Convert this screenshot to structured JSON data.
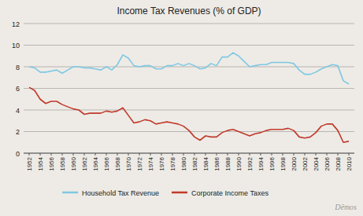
{
  "chart_data": {
    "type": "line",
    "title": "Income Tax Revenues (% of GDP)",
    "x": [
      1952,
      1953,
      1954,
      1955,
      1956,
      1957,
      1958,
      1959,
      1960,
      1961,
      1962,
      1963,
      1964,
      1965,
      1966,
      1967,
      1968,
      1969,
      1970,
      1971,
      1972,
      1973,
      1974,
      1975,
      1976,
      1977,
      1978,
      1979,
      1980,
      1981,
      1982,
      1983,
      1984,
      1985,
      1986,
      1987,
      1988,
      1989,
      1990,
      1991,
      1992,
      1993,
      1994,
      1995,
      1996,
      1997,
      1998,
      1999,
      2000,
      2001,
      2002,
      2003,
      2004,
      2005,
      2006,
      2007,
      2008,
      2009,
      2010
    ],
    "series": [
      {
        "name": "Household Tax Revenue",
        "color": "#7ec8e3",
        "values": [
          8.0,
          7.9,
          7.5,
          7.5,
          7.6,
          7.7,
          7.4,
          7.7,
          8.0,
          8.0,
          7.9,
          7.9,
          7.8,
          7.7,
          8.0,
          7.7,
          8.2,
          9.1,
          8.8,
          8.1,
          8.0,
          8.1,
          8.1,
          7.8,
          7.8,
          8.1,
          8.1,
          8.3,
          8.1,
          8.3,
          8.1,
          7.8,
          7.9,
          8.3,
          8.1,
          8.9,
          8.9,
          9.3,
          9.0,
          8.5,
          8.0,
          8.1,
          8.2,
          8.2,
          8.4,
          8.4,
          8.4,
          8.4,
          8.3,
          7.7,
          7.3,
          7.3,
          7.5,
          7.8,
          8.0,
          8.2,
          8.1,
          6.7,
          6.4
        ]
      },
      {
        "name": "Corporate Income Taxes",
        "color": "#c0392b",
        "values": [
          6.1,
          5.8,
          5.0,
          4.6,
          4.8,
          4.8,
          4.5,
          4.3,
          4.1,
          4.0,
          3.6,
          3.7,
          3.7,
          3.7,
          3.9,
          3.8,
          3.9,
          4.2,
          3.5,
          2.8,
          2.9,
          3.1,
          3.0,
          2.7,
          2.8,
          2.9,
          2.8,
          2.7,
          2.5,
          2.1,
          1.5,
          1.2,
          1.6,
          1.5,
          1.5,
          1.9,
          2.1,
          2.2,
          2.0,
          1.8,
          1.6,
          1.8,
          1.9,
          2.1,
          2.2,
          2.2,
          2.2,
          2.3,
          2.1,
          1.5,
          1.4,
          1.5,
          1.9,
          2.5,
          2.7,
          2.7,
          2.1,
          1.0,
          1.1
        ]
      }
    ],
    "xlim": [
      1951,
      2011
    ],
    "xticks": [
      1952,
      1954,
      1956,
      1958,
      1960,
      1962,
      1964,
      1966,
      1968,
      1970,
      1972,
      1974,
      1976,
      1978,
      1980,
      1982,
      1984,
      1986,
      1988,
      1990,
      1992,
      1994,
      1996,
      1998,
      2000,
      2002,
      2004,
      2006,
      2008,
      2010
    ],
    "ylim": [
      0,
      12
    ],
    "yticks": [
      0,
      2,
      4,
      6,
      8,
      10,
      12
    ],
    "grid": true,
    "legend": "bottom",
    "annotation": "Dêmos"
  }
}
